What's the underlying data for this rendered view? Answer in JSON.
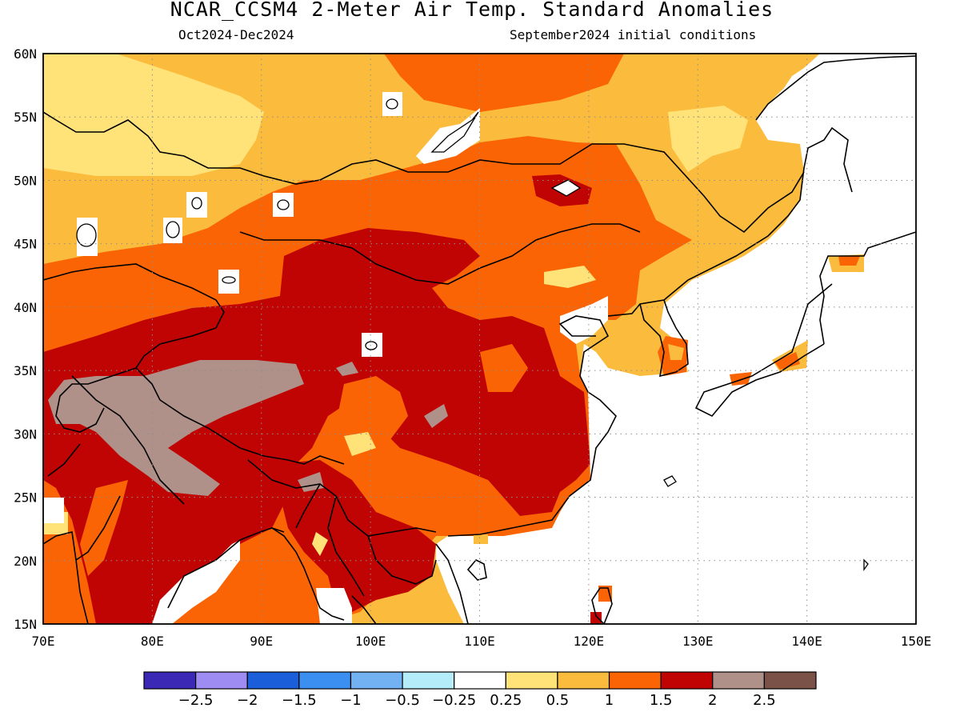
{
  "title": "NCAR_CCSM4 2-Meter Air Temp. Standard Anomalies",
  "valid_period": "Oct2024-Dec2024",
  "initial_conditions": "September2024 initial conditions",
  "map": {
    "lon_range": [
      70,
      150
    ],
    "lat_range": [
      15,
      60
    ],
    "lon_ticks": [
      "70E",
      "80E",
      "90E",
      "100E",
      "110E",
      "120E",
      "130E",
      "140E",
      "150E"
    ],
    "lat_ticks": [
      "60N",
      "55N",
      "50N",
      "45N",
      "40N",
      "35N",
      "30N",
      "25N",
      "20N",
      "15N"
    ],
    "grid": "dotted"
  },
  "colorbar": {
    "colors": [
      "#3b28b4",
      "#9f8cf3",
      "#1a5fd9",
      "#3b8ff0",
      "#72b2f3",
      "#b4ecf9",
      "#ffffff",
      "#ffe278",
      "#fbbb3c",
      "#fb6404",
      "#c00404",
      "#b0918a",
      "#7a5247"
    ],
    "labels": [
      "-2.5",
      "-2",
      "-1.5",
      "-1",
      "-0.5",
      "-0.25",
      "0.25",
      "0.5",
      "1",
      "1.5",
      "2",
      "2.5"
    ]
  }
}
